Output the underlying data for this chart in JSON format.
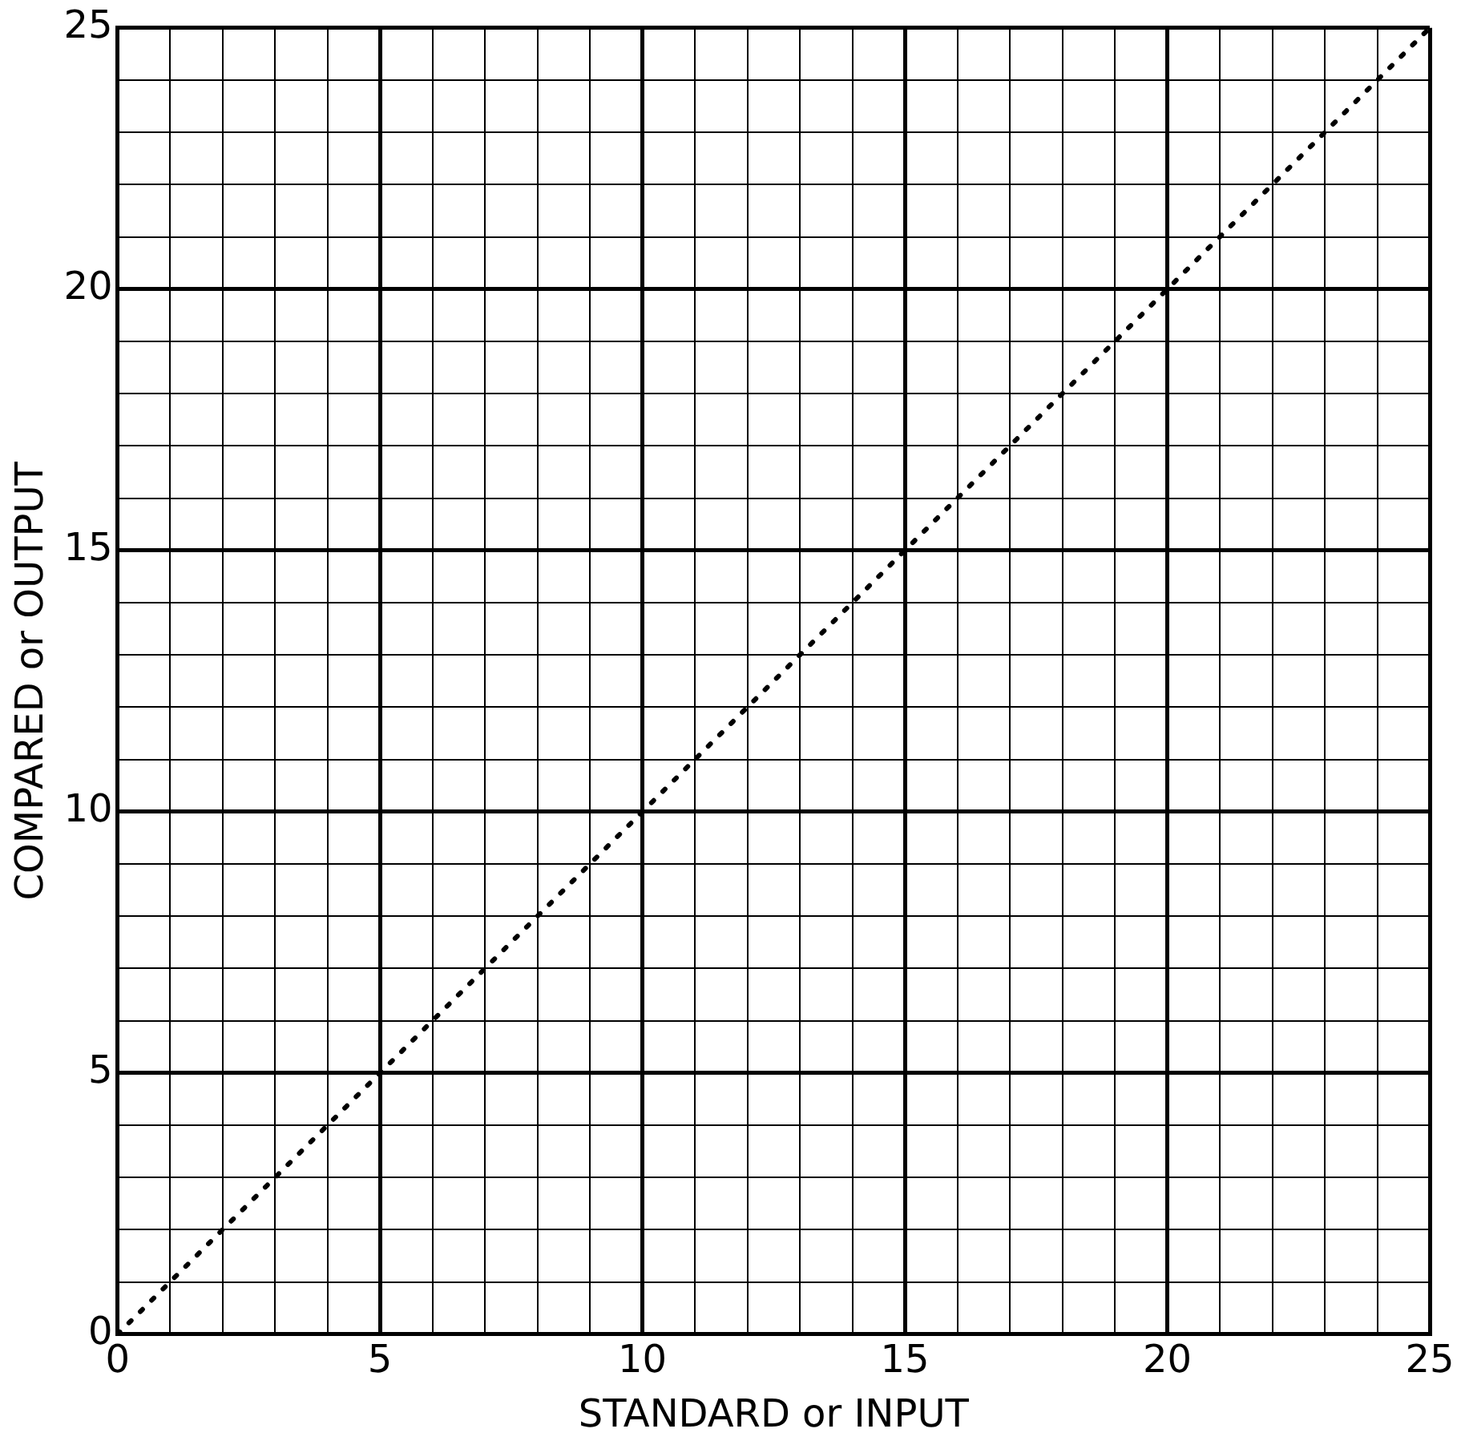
{
  "chart_data": {
    "type": "line",
    "xlabel": "STANDARD or INPUT",
    "ylabel": "COMPARED or OUTPUT",
    "x": [
      0,
      25
    ],
    "series": [
      {
        "color": "#000000",
        "values": [
          0,
          25
        ]
      }
    ],
    "xlim": [
      0,
      25
    ],
    "ylim": [
      0,
      25
    ],
    "xticks": [
      0,
      {
        "value": 1,
        "label": null
      },
      {
        "value": 2,
        "label": null
      },
      {
        "value": 3,
        "label": null
      },
      {
        "value": 4,
        "label": null
      },
      5,
      {
        "value": 6,
        "label": null
      },
      {
        "value": 7,
        "label": null
      },
      {
        "value": 8,
        "label": null
      },
      {
        "value": 9,
        "label": null
      },
      10,
      {
        "value": 11,
        "label": null
      },
      {
        "value": 12,
        "label": null
      },
      {
        "value": 13,
        "label": null
      },
      {
        "value": 14,
        "label": null
      },
      15,
      {
        "value": 16,
        "label": null
      },
      {
        "value": 17,
        "label": null
      },
      {
        "value": 18,
        "label": null
      },
      {
        "value": 19,
        "label": null
      },
      20,
      {
        "value": 21,
        "label": null
      },
      {
        "value": 22,
        "label": null
      },
      {
        "value": 23,
        "label": null
      },
      {
        "value": 24,
        "label": null
      },
      25
    ],
    "yticks": [
      0,
      {
        "value": 1,
        "label": null
      },
      {
        "value": 2,
        "label": null
      },
      {
        "value": 3,
        "label": null
      },
      {
        "value": 4,
        "label": null
      },
      5,
      {
        "value": 6,
        "label": null
      },
      {
        "value": 7,
        "label": null
      },
      {
        "value": 8,
        "label": null
      },
      {
        "value": 9,
        "label": null
      },
      10,
      {
        "value": 11,
        "label": null
      },
      {
        "value": 12,
        "label": null
      },
      {
        "value": 13,
        "label": null
      },
      {
        "value": 14,
        "label": null
      },
      15,
      {
        "value": 16,
        "label": null
      },
      {
        "value": 17,
        "label": null
      },
      {
        "value": 18,
        "label": null
      },
      {
        "value": 19,
        "label": null
      },
      20,
      {
        "value": 21,
        "label": null
      },
      {
        "value": 22,
        "label": null
      },
      {
        "value": 23,
        "label": null
      },
      {
        "value": 24,
        "label": null
      },
      25
    ],
    "grid": true,
    "legend": false,
    "marker": "none",
    "line_style": "dotted"
  }
}
